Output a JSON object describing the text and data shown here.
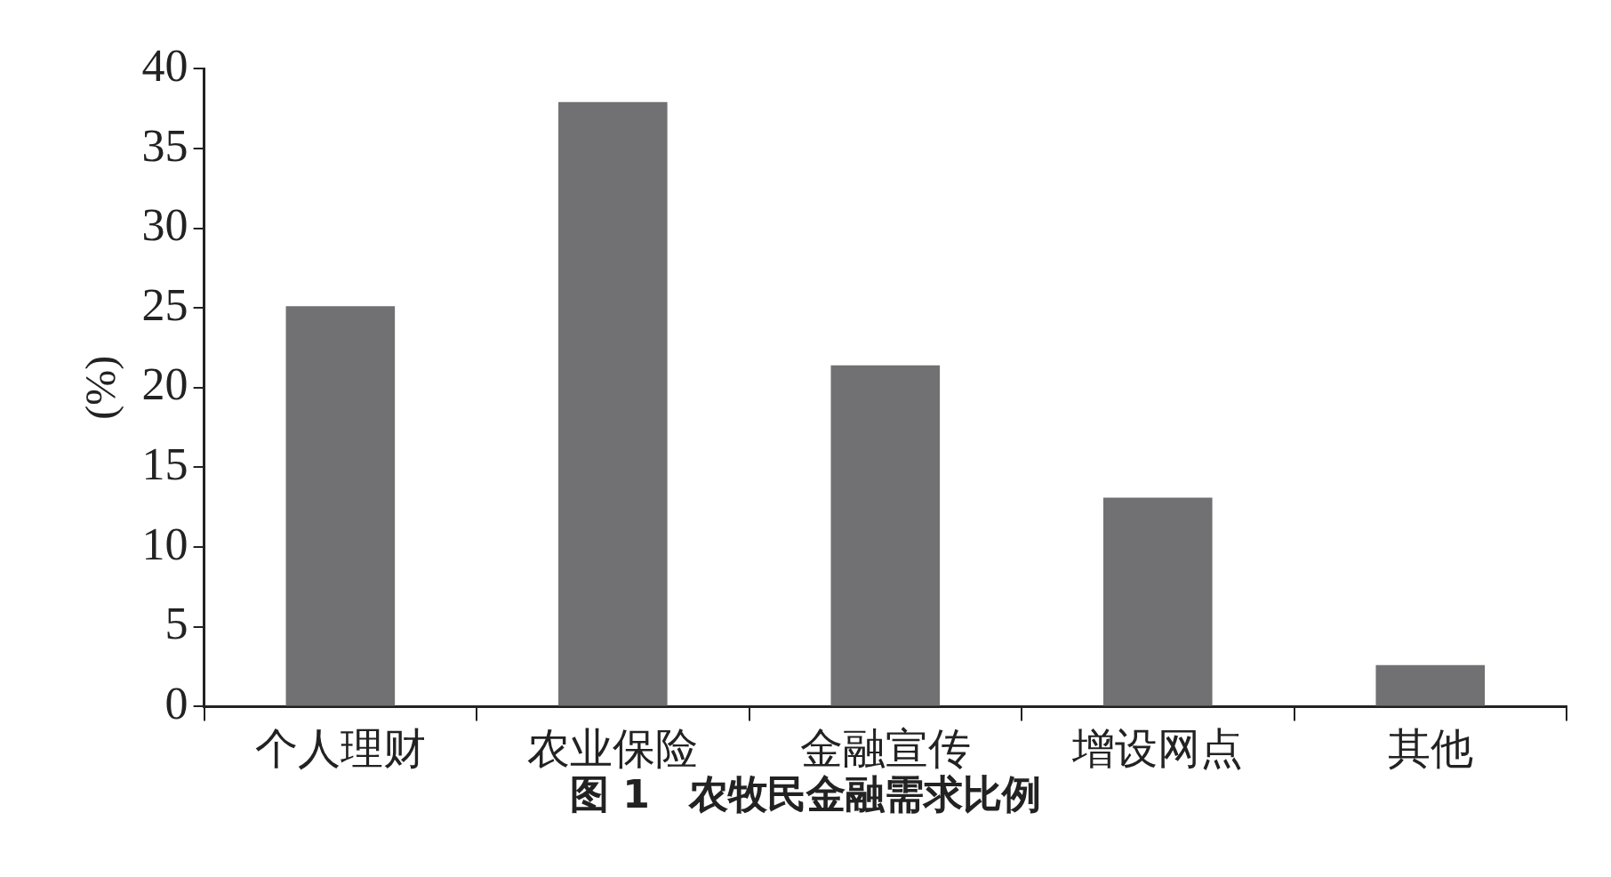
{
  "chart_data": {
    "type": "bar",
    "title": "图 1　农牧民金融需求比例",
    "ylabel": "(%)",
    "categories": [
      "个人理财",
      "农业保险",
      "金融宣传",
      "增设网点",
      "其他"
    ],
    "values": [
      25.1,
      37.9,
      21.4,
      13.1,
      2.6
    ],
    "color": "#717072",
    "ylim": [
      0,
      40
    ],
    "yticks": [
      0,
      5,
      10,
      15,
      20,
      25,
      30,
      35,
      40
    ],
    "grid": false,
    "legend": false
  }
}
